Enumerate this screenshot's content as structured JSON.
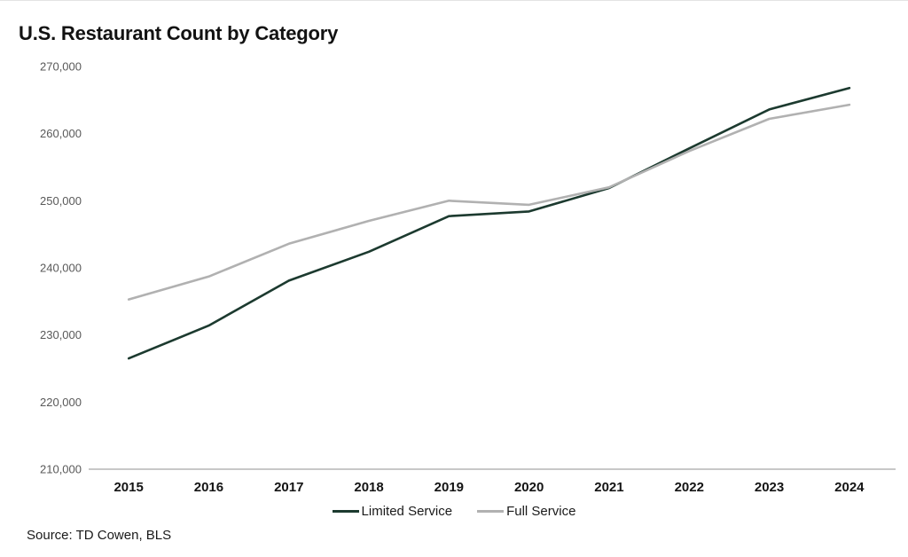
{
  "chart_data": {
    "type": "line",
    "title": "U.S. Restaurant Count by Category",
    "source": "Source: TD Cowen, BLS",
    "categories": [
      "2015",
      "2016",
      "2017",
      "2018",
      "2019",
      "2020",
      "2021",
      "2022",
      "2023",
      "2024"
    ],
    "series": [
      {
        "name": "Limited Service",
        "color": "#1c3a2f",
        "values": [
          226500,
          231400,
          238100,
          242400,
          247700,
          248400,
          251900,
          257800,
          263600,
          266800
        ]
      },
      {
        "name": "Full Service",
        "color": "#b1b1b1",
        "values": [
          235300,
          238700,
          243600,
          247000,
          250000,
          249400,
          252000,
          257400,
          262200,
          264300
        ]
      }
    ],
    "ylim": [
      210000,
      270000
    ],
    "y_tick_step": 10000,
    "grid": false,
    "legend_position": "bottom",
    "axis_line_color": "#a6a6a6",
    "y_label_color": "#595959",
    "x_label_color": "#141414"
  }
}
